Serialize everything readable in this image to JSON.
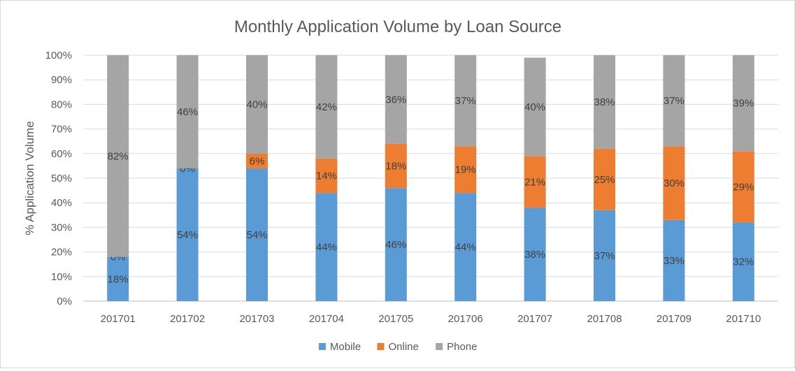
{
  "chart_data": {
    "type": "bar",
    "stacked": true,
    "title": "Monthly Application Volume by Loan Source",
    "xlabel": "",
    "ylabel": "% Application Volume",
    "ylim": [
      0,
      100
    ],
    "yticks": [
      "0%",
      "10%",
      "20%",
      "30%",
      "40%",
      "50%",
      "60%",
      "70%",
      "80%",
      "90%",
      "100%"
    ],
    "categories": [
      "201701",
      "201702",
      "201703",
      "201704",
      "201705",
      "201706",
      "201707",
      "201708",
      "201709",
      "201710"
    ],
    "series": [
      {
        "name": "Mobile",
        "color": "#5b9bd5",
        "values": [
          18,
          54,
          54,
          44,
          46,
          44,
          38,
          37,
          33,
          32
        ],
        "labels": [
          "18%",
          "54%",
          "54%",
          "44%",
          "46%",
          "44%",
          "38%",
          "37%",
          "33%",
          "32%"
        ]
      },
      {
        "name": "Online",
        "color": "#ed7d31",
        "values": [
          0,
          0,
          6,
          14,
          18,
          19,
          21,
          25,
          30,
          29
        ],
        "labels": [
          "0%",
          "0%",
          "6%",
          "14%",
          "18%",
          "19%",
          "21%",
          "25%",
          "30%",
          "29%"
        ]
      },
      {
        "name": "Phone",
        "color": "#a5a5a5",
        "values": [
          82,
          46,
          40,
          42,
          36,
          37,
          40,
          38,
          37,
          39
        ],
        "labels": [
          "82%",
          "46%",
          "40%",
          "42%",
          "36%",
          "37%",
          "40%",
          "38%",
          "37%",
          "39%"
        ]
      }
    ],
    "grid": true,
    "legend": "bottom"
  }
}
